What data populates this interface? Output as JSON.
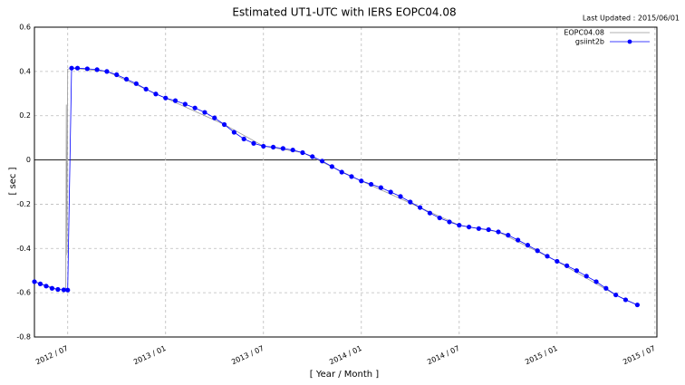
{
  "chart_data": {
    "type": "line",
    "title": "Estimated UT1-UTC with IERS EOPC04.08",
    "subtitle": "Last Updated : 2015/06/01",
    "x_label": "[ Year / Month ]",
    "y_label": "[ sec ]",
    "xlim": [
      2012.33,
      2015.51
    ],
    "xticks": [
      {
        "value": 2012.5,
        "label": "2012 / 07"
      },
      {
        "value": 2013.0,
        "label": "2013 / 01"
      },
      {
        "value": 2013.5,
        "label": "2013 / 07"
      },
      {
        "value": 2014.0,
        "label": "2014 / 01"
      },
      {
        "value": 2014.5,
        "label": "2014 / 07"
      },
      {
        "value": 2015.0,
        "label": "2015 / 01"
      },
      {
        "value": 2015.5,
        "label": "2015 / 07"
      }
    ],
    "ylim": [
      -0.8,
      0.6
    ],
    "yticks": [
      -0.8,
      -0.6,
      -0.4,
      -0.2,
      0,
      0.2,
      0.4,
      0.6
    ],
    "grid": true,
    "legend": "top-right",
    "series": [
      {
        "name": "EOPC04.08",
        "color": "#999999",
        "marker": false,
        "x": [
          2012.33,
          2012.4,
          2012.45,
          2012.49,
          2012.493,
          2012.496,
          2012.5,
          2012.52,
          2012.7,
          2013.0,
          2013.3,
          2013.5,
          2013.7,
          2014.0,
          2014.3,
          2014.5,
          2014.7,
          2015.0,
          2015.3,
          2015.41
        ],
        "values": [
          -0.55,
          -0.57,
          -0.585,
          -0.588,
          0.25,
          -0.43,
          0.41,
          0.415,
          0.4,
          0.28,
          0.16,
          0.062,
          0.033,
          -0.095,
          -0.215,
          -0.295,
          -0.325,
          -0.458,
          -0.61,
          -0.655
        ]
      },
      {
        "name": "gsiint2b",
        "color": "#0000ff",
        "marker": true,
        "x": [
          2012.33,
          2012.36,
          2012.39,
          2012.42,
          2012.45,
          2012.48,
          2012.5,
          2012.52,
          2012.55,
          2012.6,
          2012.65,
          2012.7,
          2012.75,
          2012.8,
          2012.85,
          2012.9,
          2012.95,
          2013.0,
          2013.05,
          2013.1,
          2013.15,
          2013.2,
          2013.25,
          2013.3,
          2013.35,
          2013.4,
          2013.45,
          2013.5,
          2013.55,
          2013.6,
          2013.65,
          2013.7,
          2013.75,
          2013.8,
          2013.85,
          2013.9,
          2013.95,
          2014.0,
          2014.05,
          2014.1,
          2014.15,
          2014.2,
          2014.25,
          2014.3,
          2014.35,
          2014.4,
          2014.45,
          2014.5,
          2014.55,
          2014.6,
          2014.65,
          2014.7,
          2014.75,
          2014.8,
          2014.85,
          2014.9,
          2014.95,
          2015.0,
          2015.05,
          2015.1,
          2015.15,
          2015.2,
          2015.25,
          2015.3,
          2015.35,
          2015.41
        ],
        "values": [
          -0.55,
          -0.56,
          -0.57,
          -0.58,
          -0.585,
          -0.587,
          -0.588,
          0.415,
          0.415,
          0.412,
          0.408,
          0.4,
          0.385,
          0.365,
          0.345,
          0.32,
          0.298,
          0.28,
          0.268,
          0.252,
          0.235,
          0.215,
          0.19,
          0.16,
          0.125,
          0.095,
          0.075,
          0.062,
          0.058,
          0.052,
          0.045,
          0.033,
          0.015,
          -0.005,
          -0.03,
          -0.055,
          -0.075,
          -0.095,
          -0.11,
          -0.125,
          -0.145,
          -0.165,
          -0.19,
          -0.215,
          -0.24,
          -0.262,
          -0.28,
          -0.295,
          -0.303,
          -0.31,
          -0.315,
          -0.325,
          -0.34,
          -0.362,
          -0.385,
          -0.41,
          -0.435,
          -0.458,
          -0.478,
          -0.5,
          -0.525,
          -0.55,
          -0.58,
          -0.61,
          -0.632,
          -0.655
        ]
      }
    ]
  }
}
